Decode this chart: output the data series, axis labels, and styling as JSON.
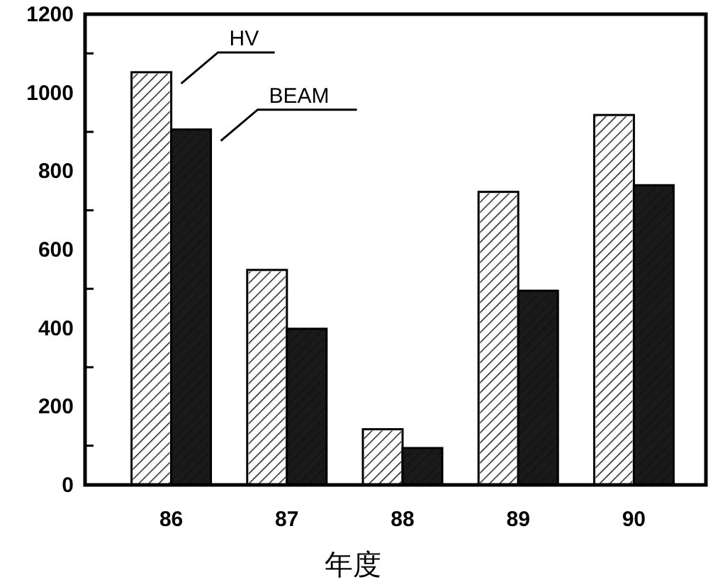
{
  "chart_data": {
    "type": "bar",
    "xlabel": "年度",
    "categories": [
      "86",
      "87",
      "88",
      "89",
      "90"
    ],
    "series": [
      {
        "name": "HV",
        "color": "#ffffff",
        "values": [
          1052,
          548,
          142,
          747,
          943
        ]
      },
      {
        "name": "BEAM",
        "color": "#1a1a1a",
        "values": [
          906,
          398,
          94,
          495,
          764
        ]
      }
    ],
    "ylim": [
      0,
      1200
    ],
    "yticks": [
      0,
      {
        "value": 100,
        "label": null
      },
      200,
      {
        "value": 300,
        "label": null
      },
      400,
      {
        "value": 500,
        "label": null
      },
      600,
      {
        "value": 700,
        "label": null
      },
      800,
      {
        "value": 900,
        "label": null
      },
      1000,
      {
        "value": 1100,
        "label": null
      },
      1200
    ],
    "grid": false,
    "legend": false
  }
}
